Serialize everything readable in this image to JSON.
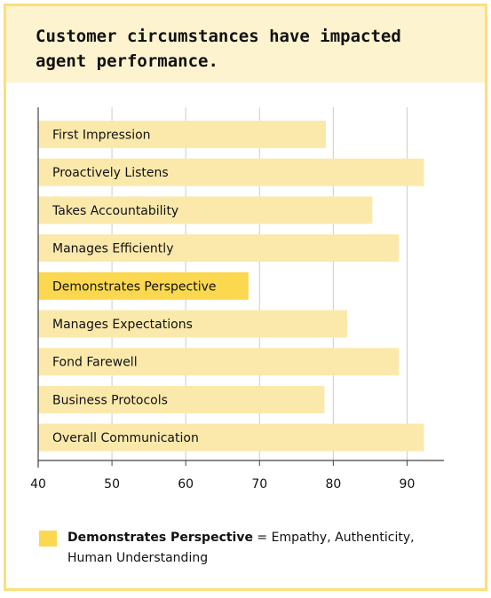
{
  "title": "Customer circumstances have impacted agent performance.",
  "colors": {
    "bar": "#fbe9ac",
    "highlight": "#fbd850",
    "grid": "#cccccc",
    "axis": "#444444",
    "text": "#111111"
  },
  "legend": {
    "term": "Demonstrates Perspective",
    "definition": " = Empathy, Authenticity, Human Understanding"
  },
  "chart_data": {
    "type": "bar",
    "orientation": "horizontal",
    "categories": [
      "First Impression",
      "Proactively Listens",
      "Takes Accountability",
      "Manages Efficiently",
      "Demonstrates Perspective",
      "Manages Expectations",
      "Fond Farewell",
      "Business Protocols",
      "Overall Communication"
    ],
    "values": [
      79,
      92.3,
      85.3,
      88.9,
      68.5,
      81.9,
      88.9,
      78.8,
      92.3
    ],
    "highlight_index": 4,
    "xlim": [
      40,
      95
    ],
    "xticks": [
      40,
      50,
      60,
      70,
      80,
      90
    ],
    "grid": true
  }
}
